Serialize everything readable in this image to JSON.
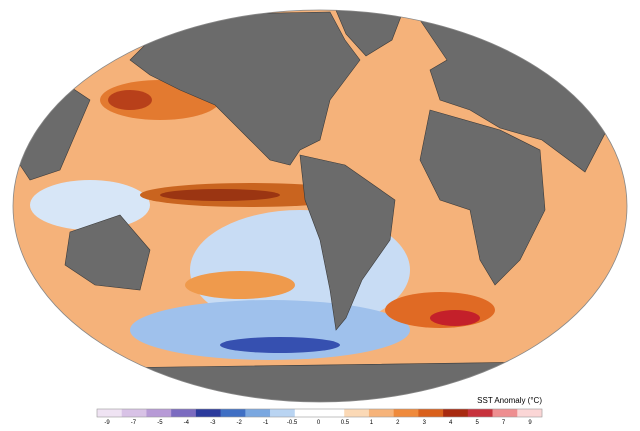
{
  "colorbar": {
    "title": "SST Anomaly (°C)",
    "ticks": [
      "-9",
      "-7",
      "-5",
      "-4",
      "-3",
      "-2",
      "-1",
      "-0.5",
      "0",
      "0.5",
      "1",
      "2",
      "3",
      "4",
      "5",
      "7",
      "9"
    ],
    "colors": [
      "#efe3f3",
      "#d8c2e6",
      "#b79ad6",
      "#7b6bc0",
      "#2b3a9c",
      "#3f6fc4",
      "#7aa7e0",
      "#b9d4f2",
      "#ffffff",
      "#ffffff",
      "#fbd9b6",
      "#f6b37a",
      "#ef8a3c",
      "#d9601c",
      "#a82a10",
      "#c7323c",
      "#ee8e90",
      "#fbd6d6"
    ]
  }
}
